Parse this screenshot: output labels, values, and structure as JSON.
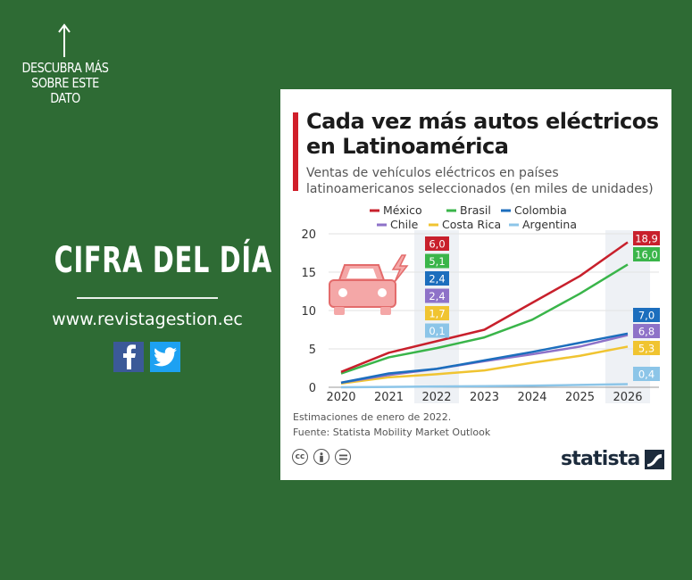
{
  "page": {
    "discover_text": "DESCUBRA MÁS SOBRE ESTE DATO",
    "headline": "CIFRA DEL DÍA",
    "website": "www.revistagestion.ec",
    "icons": [
      "arrow-up-icon",
      "facebook-icon",
      "twitter-icon"
    ]
  },
  "card": {
    "title": "Cada vez más autos eléctricos en Latinoamérica",
    "subtitle": "Ventas de vehículos eléctricos en países latinoamericanos seleccionados (en miles de unidades)",
    "note": "Estimaciones de enero de 2022.",
    "source": "Fuente: Statista Mobility Market Outlook",
    "brand": "statista",
    "license_icons": [
      "cc",
      "by",
      "nd"
    ]
  },
  "chart_data": {
    "type": "line",
    "x": [
      "2020",
      "2021",
      "2022",
      "2023",
      "2024",
      "2025",
      "2026"
    ],
    "ylim": [
      0,
      20
    ],
    "yticks": [
      0,
      5,
      10,
      15,
      20
    ],
    "grid": true,
    "legend_position": "top",
    "highlighted_x": [
      "2022",
      "2026"
    ],
    "series": [
      {
        "name": "México",
        "color": "#c8202c",
        "values": [
          2.0,
          4.5,
          6.0,
          7.5,
          11.0,
          14.5,
          18.9
        ],
        "label_2022": "6,0",
        "label_2026": "18,9"
      },
      {
        "name": "Brasil",
        "color": "#3ab54a",
        "values": [
          1.8,
          3.9,
          5.1,
          6.5,
          8.8,
          12.2,
          16.0
        ],
        "label_2022": "5,1",
        "label_2026": "16,0"
      },
      {
        "name": "Colombia",
        "color": "#1c6ebd",
        "values": [
          0.6,
          1.8,
          2.4,
          3.5,
          4.6,
          5.8,
          7.0
        ],
        "label_2022": "2,4",
        "label_2026": "7,0"
      },
      {
        "name": "Chile",
        "color": "#8e72c8",
        "values": [
          0.6,
          1.6,
          2.4,
          3.4,
          4.3,
          5.3,
          6.8
        ],
        "label_2022": "2,4",
        "label_2026": "6,8"
      },
      {
        "name": "Costa Rica",
        "color": "#f0c431",
        "values": [
          0.5,
          1.3,
          1.7,
          2.2,
          3.2,
          4.1,
          5.3
        ],
        "label_2022": "1,7",
        "label_2026": "5,3"
      },
      {
        "name": "Argentina",
        "color": "#8cc5e8",
        "values": [
          0.0,
          0.05,
          0.1,
          0.15,
          0.2,
          0.3,
          0.4
        ],
        "label_2022": "0,1",
        "label_2026": "0,4"
      }
    ]
  }
}
